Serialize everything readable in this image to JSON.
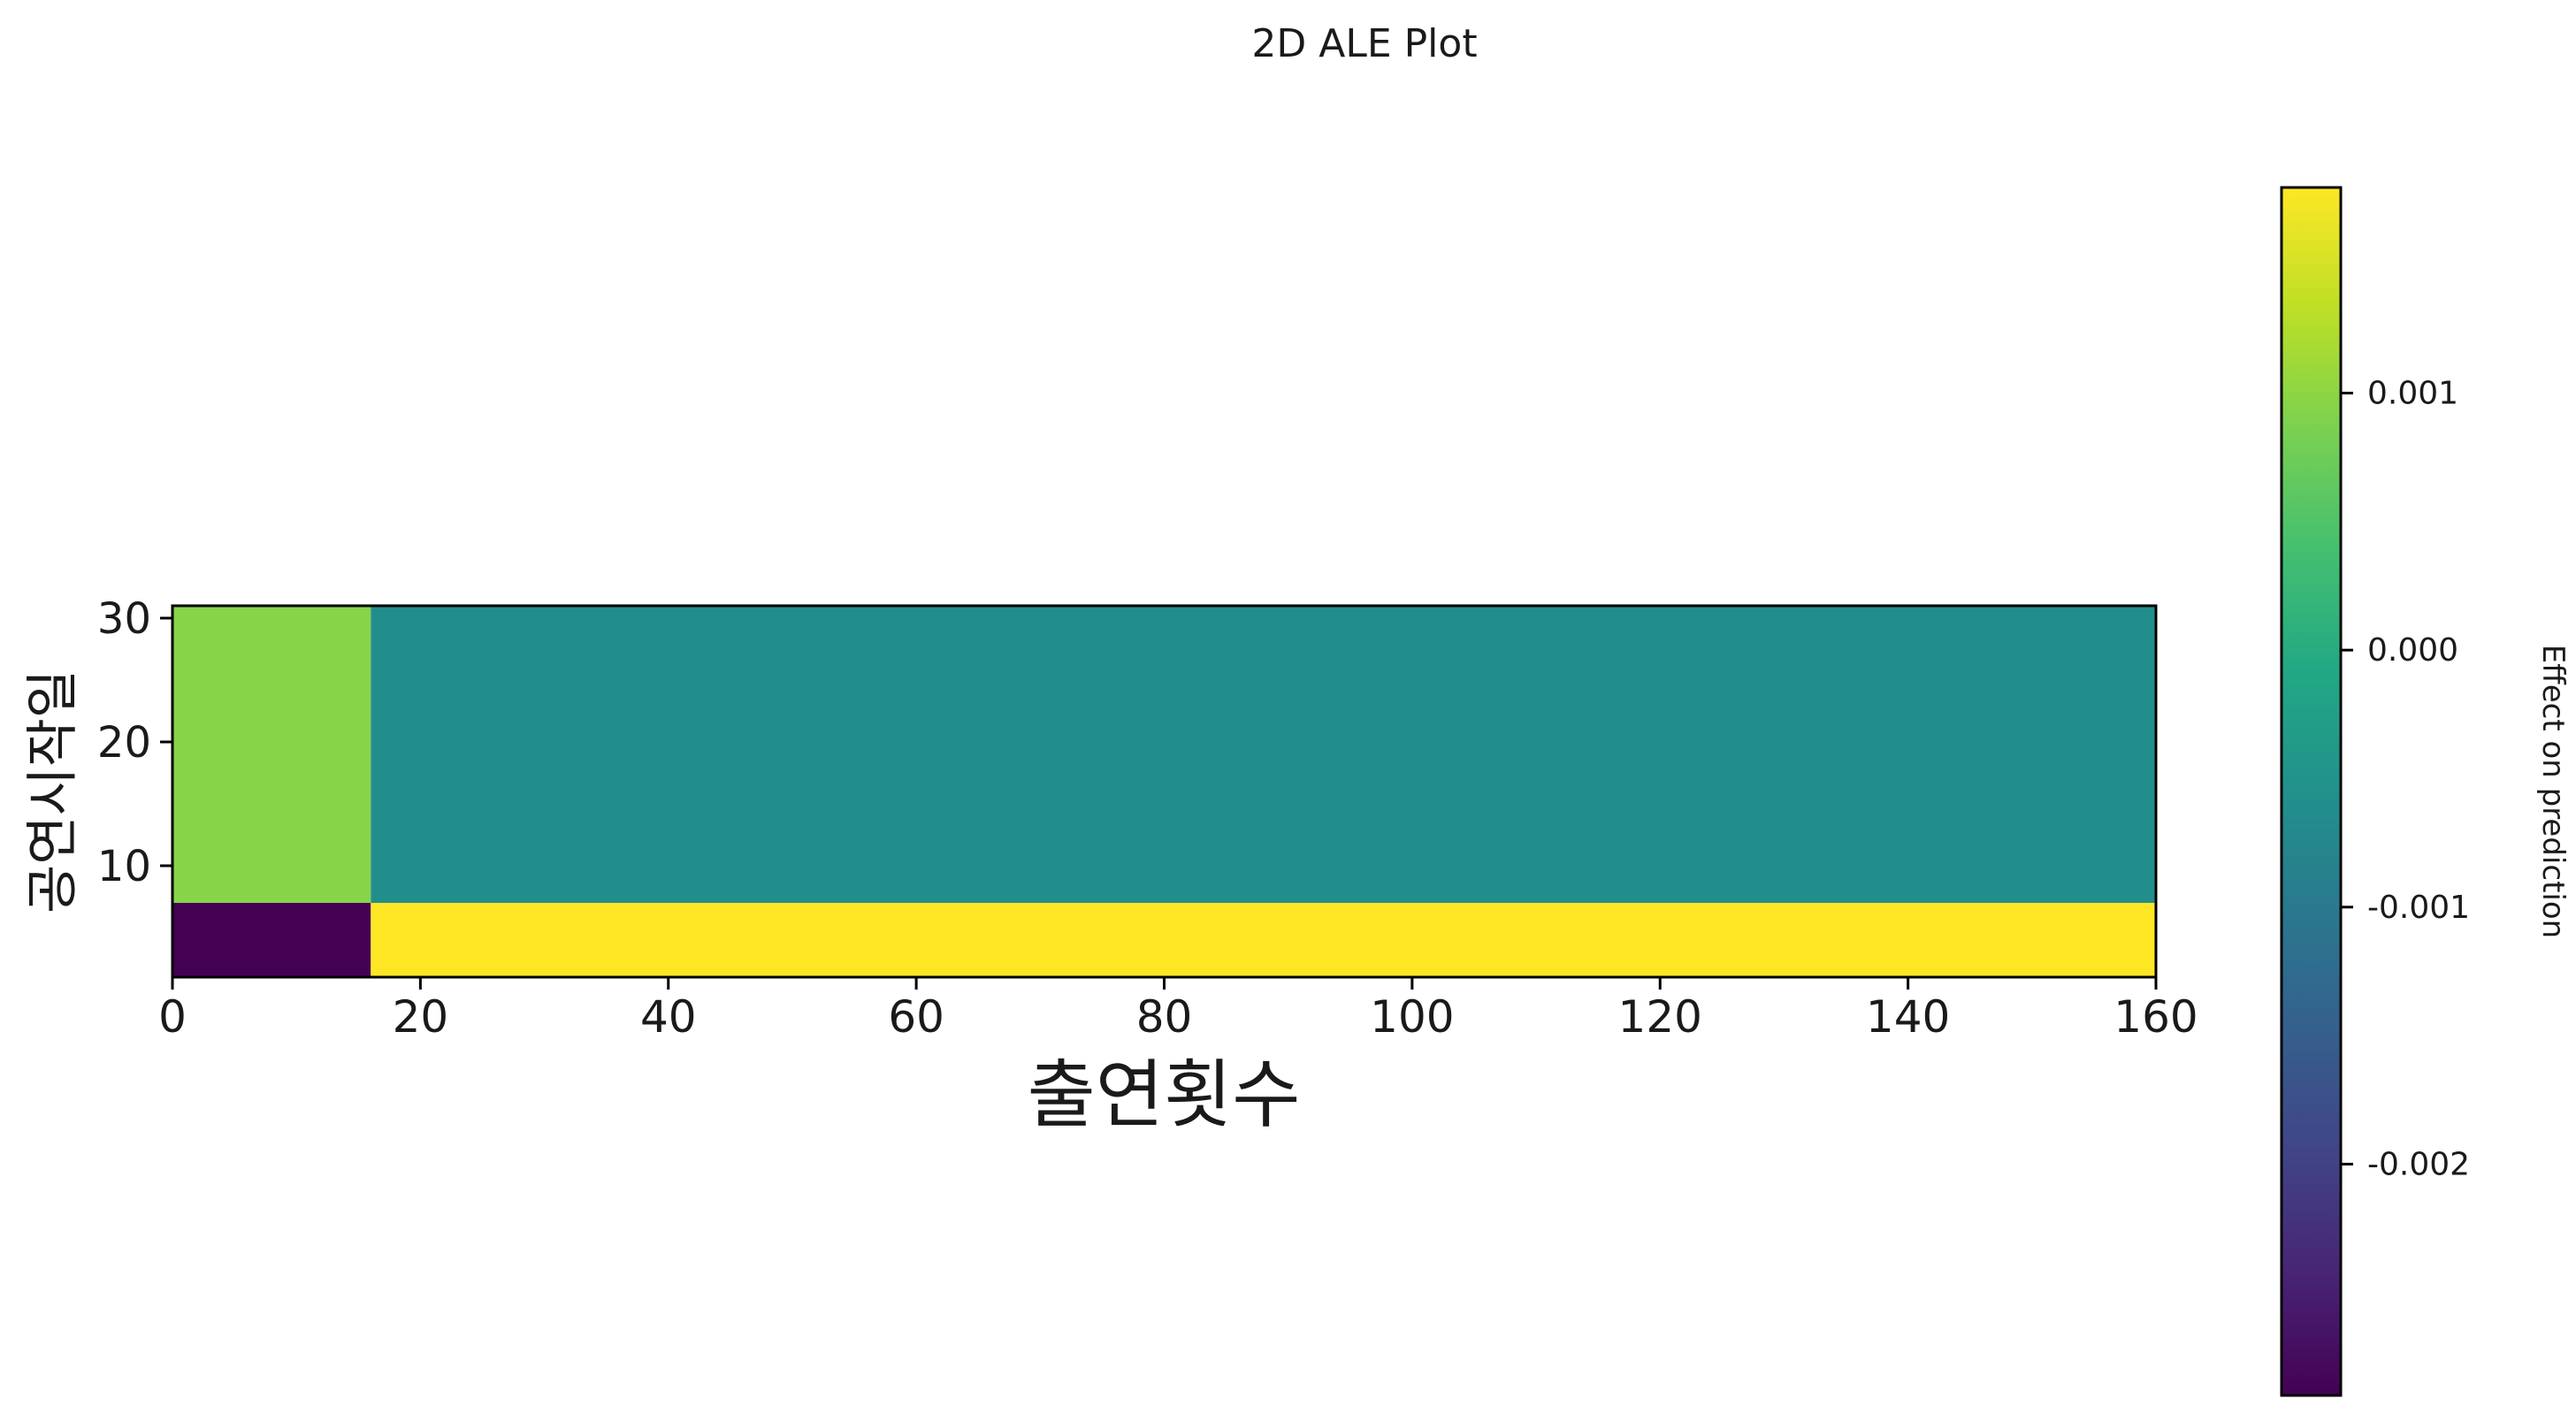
{
  "chart_data": {
    "type": "heatmap",
    "title": "2D ALE Plot",
    "xlabel": "출연횟수",
    "ylabel": "공연시작일",
    "xlim": [
      0,
      160
    ],
    "ylim": [
      1,
      31
    ],
    "x_ticks": [
      0,
      20,
      40,
      60,
      80,
      100,
      120,
      140,
      160
    ],
    "x_tick_labels": [
      "0",
      "20",
      "40",
      "60",
      "80",
      "100",
      "120",
      "140",
      "160"
    ],
    "y_ticks": [
      10,
      20,
      30
    ],
    "y_tick_labels": [
      "10",
      "20",
      "30"
    ],
    "x_edges": [
      0,
      16,
      160
    ],
    "y_edges": [
      1,
      7,
      31
    ],
    "cells": [
      {
        "x0": 0,
        "x1": 16,
        "y0": 1,
        "y1": 7,
        "value": -0.0029
      },
      {
        "x0": 16,
        "x1": 160,
        "y0": 1,
        "y1": 7,
        "value": 0.0018
      },
      {
        "x0": 0,
        "x1": 16,
        "y0": 7,
        "y1": 31,
        "value": 0.00095
      },
      {
        "x0": 16,
        "x1": 160,
        "y0": 7,
        "y1": 31,
        "value": -0.0006
      }
    ],
    "colorbar": {
      "label": "Effect on prediction",
      "colormap": "viridis",
      "vmin": -0.0029,
      "vmax": 0.0018,
      "ticks": [
        0.001,
        0.0,
        -0.001,
        -0.002
      ],
      "tick_labels": [
        "0.001",
        "0.000",
        "-0.001",
        "-0.002"
      ]
    },
    "grid": false
  }
}
